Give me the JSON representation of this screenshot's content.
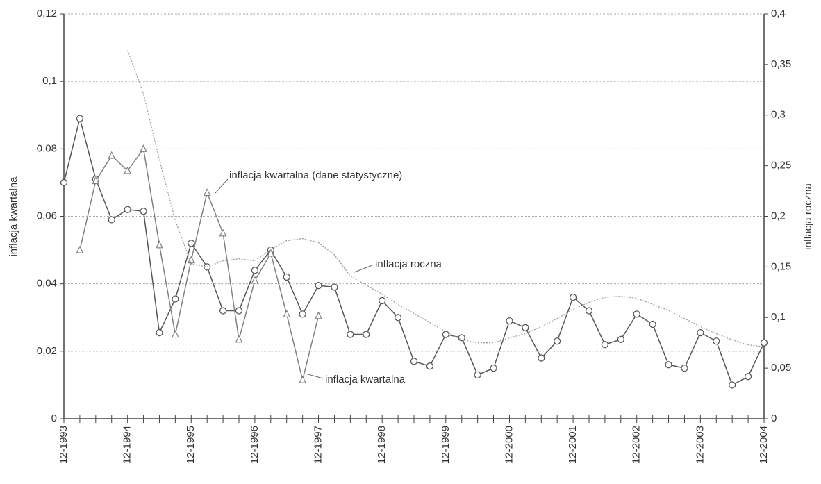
{
  "chart_data": {
    "type": "line",
    "y_label": "inflacja kwartalna",
    "y2_label": "inflacja roczna",
    "categories": [
      "12-1993",
      null,
      null,
      null,
      "12-1994",
      null,
      null,
      null,
      "12-1995",
      null,
      null,
      null,
      "12-1996",
      null,
      null,
      null,
      "12-1997",
      null,
      null,
      null,
      "12-1998",
      null,
      null,
      null,
      "12-1999",
      null,
      null,
      null,
      "12-2000",
      null,
      null,
      null,
      "12-2001",
      null,
      null,
      null,
      "12-2002",
      null,
      null,
      null,
      "12-2003",
      null,
      null,
      null,
      "12-2004"
    ],
    "ylim": [
      0,
      0.12
    ],
    "yticks": [
      0,
      {
        "value": 0.02,
        "label": "0,02"
      },
      {
        "value": 0.04,
        "label": "0,04"
      },
      {
        "value": 0.06,
        "label": "0,06"
      },
      {
        "value": 0.08,
        "label": "0,08"
      },
      {
        "value": 0.1,
        "label": "0,1"
      },
      {
        "value": 0.12,
        "label": "0,12"
      }
    ],
    "y2lim": [
      0,
      0.4
    ],
    "y2ticks": [
      0,
      {
        "value": 0.05,
        "label": "0,05"
      },
      {
        "value": 0.1,
        "label": "0,1"
      },
      {
        "value": 0.15,
        "label": "0,15"
      },
      {
        "value": 0.2,
        "label": "0,2"
      },
      {
        "value": 0.25,
        "label": "0,25"
      },
      {
        "value": 0.3,
        "label": "0,3"
      },
      {
        "value": 0.35,
        "label": "0,35"
      },
      {
        "value": 0.4,
        "label": "0,4"
      }
    ],
    "grid": true,
    "series": [
      {
        "name": "inflacja kwartalna",
        "color": "#555555",
        "marker": "circle",
        "values": [
          0.07,
          0.089,
          0.071,
          0.059,
          0.062,
          0.0615,
          0.0255,
          0.0355,
          0.052,
          0.045,
          0.032,
          0.032,
          0.044,
          0.05,
          0.042,
          0.031,
          0.0395,
          0.039,
          0.025,
          0.025,
          0.035,
          0.03,
          0.017,
          0.0156,
          0.025,
          0.024,
          0.013,
          0.015,
          0.029,
          0.027,
          0.018,
          0.023,
          0.036,
          0.032,
          0.022,
          0.0235,
          0.031,
          0.028,
          0.016,
          0.015,
          0.0255,
          0.023,
          0.01,
          0.0125,
          0.0225
        ]
      },
      {
        "name": "inflacja kwartalna (dane statystyczne)",
        "color": "#808080",
        "marker": "triangle",
        "values": [
          null,
          0.05,
          0.0705,
          0.078,
          0.0735,
          0.08,
          0.0515,
          0.025,
          0.047,
          0.067,
          0.055,
          0.0235,
          0.041,
          0.049,
          0.031,
          0.0115,
          0.0305,
          null,
          null,
          null,
          null,
          null,
          null,
          null,
          null,
          null,
          null,
          null,
          null,
          null,
          null,
          null,
          null,
          null,
          null,
          null,
          null,
          null,
          null,
          null,
          null,
          null,
          null,
          null,
          null
        ]
      },
      {
        "name": "inflacja roczna",
        "color": "#9a9a9a",
        "axis": "y2",
        "values": [
          null,
          null,
          null,
          null,
          0.364,
          0.321,
          0.256,
          0.196,
          0.153,
          0.15,
          0.156,
          0.158,
          0.156,
          0.167,
          0.176,
          0.178,
          0.174,
          0.162,
          0.141,
          0.132,
          0.123,
          0.113,
          0.104,
          0.095,
          0.086,
          0.078,
          0.075,
          0.075,
          0.08,
          0.084,
          0.091,
          0.099,
          0.108,
          0.115,
          0.12,
          0.121,
          0.119,
          0.113,
          0.107,
          0.099,
          0.091,
          0.084,
          0.078,
          0.073,
          0.071
        ]
      }
    ]
  }
}
